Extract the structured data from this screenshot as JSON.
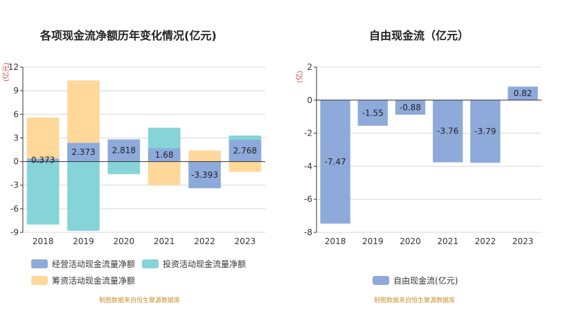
{
  "chart_data": [
    {
      "type": "bar",
      "title": "各项现金流净额历年变化情况(亿元)",
      "ylabel": "(亿元)",
      "categories": [
        "2018",
        "2019",
        "2020",
        "2021",
        "2022",
        "2023"
      ],
      "ylim": [
        -9,
        12
      ],
      "yticks": [
        -9,
        -6,
        -3,
        0,
        3,
        6,
        9,
        12
      ],
      "series": [
        {
          "name": "经营活动现金流量净额",
          "color": "#8eaadb",
          "values": [
            0.373,
            2.373,
            2.818,
            1.68,
            -3.393,
            2.768
          ],
          "labels": [
            "0.373",
            "2.373",
            "2.818",
            "1.68",
            "-3.393",
            "2.768"
          ]
        },
        {
          "name": "投资活动现金流量净额",
          "color": "#86d4d8",
          "values": [
            -8.0,
            -8.8,
            -1.6,
            4.3,
            -0.5,
            3.3
          ]
        },
        {
          "name": "筹资活动现金流量净额",
          "color": "#ffd89a",
          "values": [
            5.6,
            10.3,
            -1.1,
            -3.0,
            1.4,
            -1.3
          ]
        }
      ],
      "source": "制图数据来自恒生聚源数据库"
    },
    {
      "type": "bar",
      "title": "自由现金流（亿元）",
      "ylabel": "(亿)",
      "categories": [
        "2018",
        "2019",
        "2020",
        "2021",
        "2022",
        "2023"
      ],
      "ylim": [
        -8,
        2
      ],
      "yticks": [
        -8,
        -6,
        -4,
        -2,
        0,
        2
      ],
      "series": [
        {
          "name": "自由现金流(亿元)",
          "color": "#8eaadb",
          "values": [
            -7.47,
            -1.55,
            -0.88,
            -3.76,
            -3.79,
            0.82
          ],
          "labels": [
            "-7.47",
            "-1.55",
            "-0.88",
            "-3.76",
            "-3.79",
            "0.82"
          ]
        }
      ],
      "source": "制图数据来自恒生聚源数据库"
    }
  ]
}
